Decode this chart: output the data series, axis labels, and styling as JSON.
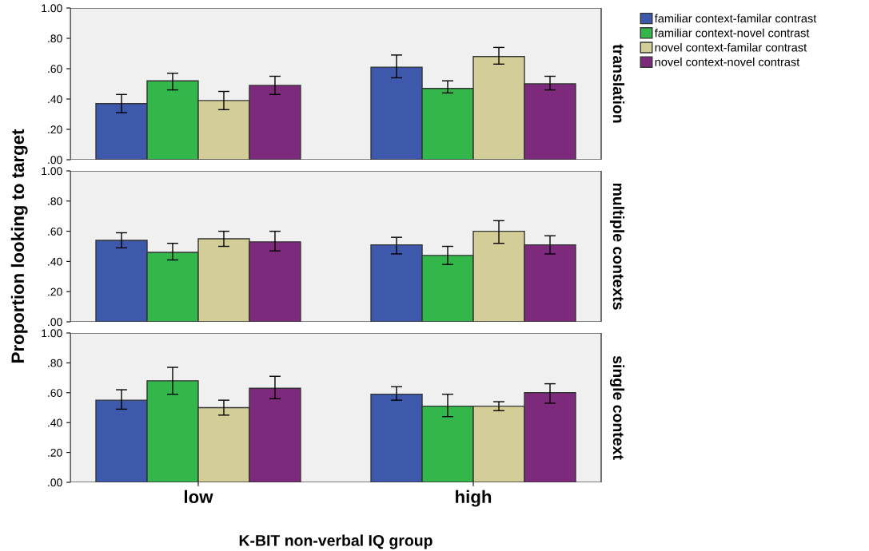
{
  "chart_data": [
    {
      "type": "bar",
      "annotations": [
        "translation"
      ],
      "categories": [
        null,
        null
      ],
      "ylim": [
        0,
        1.0
      ],
      "yticks": [
        {
          "value": 0,
          "label": ".00"
        },
        {
          "value": 0.2,
          "label": ".20"
        },
        {
          "value": 0.4,
          "label": ".40"
        },
        {
          "value": 0.6,
          "label": ".60"
        },
        {
          "value": 0.8,
          "label": ".80"
        },
        {
          "value": 1.0,
          "label": "1.00"
        }
      ],
      "tick_labels": "y",
      "legend": "top right",
      "grid": false,
      "series": [
        {
          "name": "familiar context-familar contrast",
          "color": "#3e58ac",
          "values": [
            0.37,
            0.61
          ],
          "errors": [
            [
              0.31,
              0.43
            ],
            [
              0.54,
              0.69
            ]
          ]
        },
        {
          "name": "familiar context-novel contrast",
          "color": "#33b64a",
          "values": [
            0.52,
            0.47
          ],
          "errors": [
            [
              0.46,
              0.57
            ],
            [
              0.44,
              0.52
            ]
          ]
        },
        {
          "name": "novel context-familar contrast",
          "color": "#d3ce97",
          "values": [
            0.39,
            0.68
          ],
          "errors": [
            [
              0.33,
              0.45
            ],
            [
              0.63,
              0.74
            ]
          ]
        },
        {
          "name": "novel context-novel contrast",
          "color": "#7d2a7c",
          "values": [
            0.49,
            0.5
          ],
          "errors": [
            [
              0.43,
              0.55
            ],
            [
              0.46,
              0.55
            ]
          ]
        }
      ]
    },
    {
      "type": "bar",
      "annotations": [
        "multiple contexts"
      ],
      "ylabel": "Proportion looking to target",
      "categories": [
        null,
        null
      ],
      "ylim": [
        0,
        1.0
      ],
      "yticks": [
        {
          "value": 0,
          "label": ".00"
        },
        {
          "value": 0.2,
          "label": ".20"
        },
        {
          "value": 0.4,
          "label": ".40"
        },
        {
          "value": 0.6,
          "label": ".60"
        },
        {
          "value": 0.8,
          "label": ".80"
        },
        {
          "value": 1.0,
          "label": "1.00"
        }
      ],
      "tick_labels": "y",
      "grid": false,
      "series": [
        {
          "color": "#3e58ac",
          "values": [
            0.54,
            0.51
          ],
          "errors": [
            [
              0.49,
              0.59
            ],
            [
              0.45,
              0.56
            ]
          ]
        },
        {
          "color": "#33b64a",
          "values": [
            0.46,
            0.44
          ],
          "errors": [
            [
              0.41,
              0.52
            ],
            [
              0.38,
              0.5
            ]
          ]
        },
        {
          "color": "#d3ce97",
          "values": [
            0.55,
            0.6
          ],
          "errors": [
            [
              0.5,
              0.6
            ],
            [
              0.52,
              0.67
            ]
          ]
        },
        {
          "color": "#7d2a7c",
          "values": [
            0.53,
            0.51
          ],
          "errors": [
            [
              0.47,
              0.6
            ],
            [
              0.45,
              0.57
            ]
          ]
        }
      ]
    },
    {
      "type": "bar",
      "annotations": [
        "single context"
      ],
      "xlabel": "K-BIT non-verbal IQ group",
      "categories": [
        "low",
        "high"
      ],
      "ylim": [
        0,
        1.0
      ],
      "yticks": [
        {
          "value": 0,
          "label": ".00"
        },
        {
          "value": 0.2,
          "label": ".20"
        },
        {
          "value": 0.4,
          "label": ".40"
        },
        {
          "value": 0.6,
          "label": ".60"
        },
        {
          "value": 0.8,
          "label": ".80"
        },
        {
          "value": 1.0,
          "label": "1.00"
        }
      ],
      "grid": false,
      "series": [
        {
          "color": "#3e58ac",
          "values": [
            0.55,
            0.59
          ],
          "errors": [
            [
              0.49,
              0.62
            ],
            [
              0.55,
              0.64
            ]
          ]
        },
        {
          "color": "#33b64a",
          "values": [
            0.68,
            0.51
          ],
          "errors": [
            [
              0.59,
              0.77
            ],
            [
              0.44,
              0.59
            ]
          ]
        },
        {
          "color": "#d3ce97",
          "values": [
            0.5,
            0.51
          ],
          "errors": [
            [
              0.45,
              0.55
            ],
            [
              0.48,
              0.54
            ]
          ]
        },
        {
          "color": "#7d2a7c",
          "values": [
            0.63,
            0.6
          ],
          "errors": [
            [
              0.56,
              0.71
            ],
            [
              0.53,
              0.66
            ]
          ]
        }
      ]
    }
  ]
}
